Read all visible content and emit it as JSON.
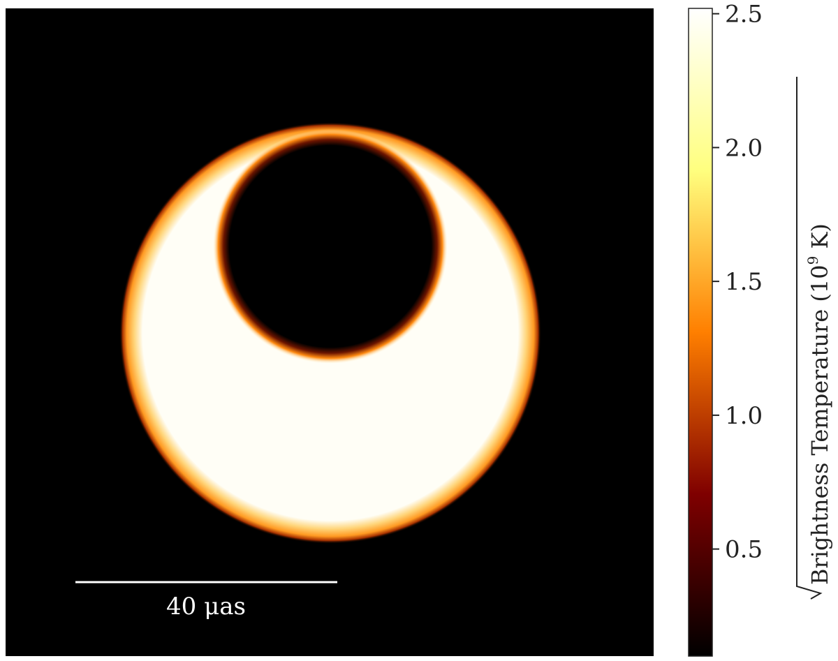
{
  "chart_data": {
    "type": "heatmap",
    "title": "",
    "image": {
      "background_color": "#000000",
      "description_shapes": [
        {
          "name": "outer-disk",
          "cx_uas": 0,
          "cy_uas": 0,
          "r_uas": 32,
          "intensity": 2.5
        },
        {
          "name": "inner-shadow",
          "cx_uas": 0,
          "cy_uas": 10.2,
          "r_uas": 17.5,
          "intensity": 0.0
        }
      ],
      "field_of_view_uas": 100
    },
    "scale_bar": {
      "label": "40 μas",
      "length_uas": 40
    },
    "colorbar": {
      "label_prefix": "Brightness Temperature (10",
      "label_exponent": "9",
      "label_suffix": " K)",
      "vmin": 0.1,
      "vmax": 2.52,
      "ticks": [
        0.5,
        1.0,
        1.5,
        2.0,
        2.5
      ],
      "tick_labels": [
        "0.5",
        "1.0",
        "1.5",
        "2.0",
        "2.5"
      ],
      "colormap": "afmhot",
      "colormap_stops": [
        "#000000",
        "#7f0000",
        "#ff7f00",
        "#ffff7f",
        "#ffffff"
      ]
    }
  }
}
